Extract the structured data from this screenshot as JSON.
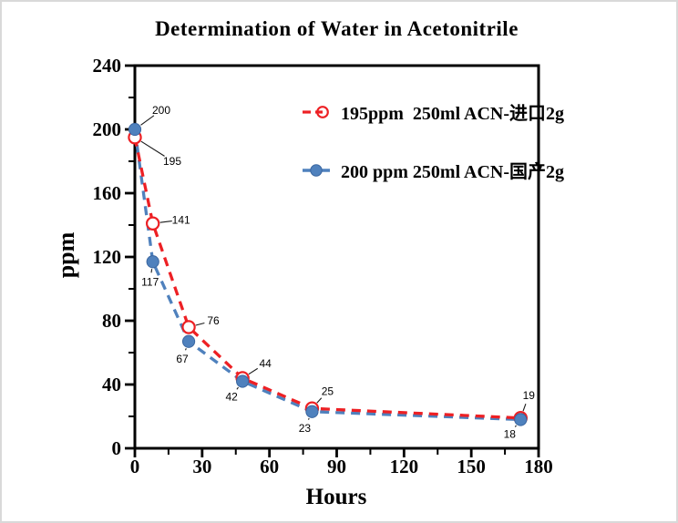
{
  "panel": {
    "background": "#ffffff",
    "frame_border_color": "#d9d9d9",
    "axis_color": "#000000"
  },
  "chart_data": {
    "type": "line",
    "title": "Determination of Water in Acetonitrile",
    "xlabel": "Hours",
    "ylabel": "ppm",
    "xlim": [
      0,
      180
    ],
    "ylim": [
      0,
      240
    ],
    "grid": false,
    "legend_position": "inside-top-right",
    "xticks": {
      "major": [
        0,
        30,
        60,
        90,
        120,
        150,
        180
      ],
      "minor": [
        15,
        45,
        75,
        105,
        135,
        165
      ]
    },
    "yticks": {
      "major": [
        0,
        40,
        80,
        120,
        160,
        200,
        240
      ],
      "minor": [
        20,
        60,
        100,
        140,
        180,
        220
      ]
    },
    "series": [
      {
        "name": "195ppm  250ml ACN-进口2g",
        "color": "#ed2024",
        "line_style": "dashed",
        "marker": "open-circle",
        "points": [
          {
            "x": 0,
            "y": 195,
            "label": "195",
            "label_dx": 41,
            "label_dy": 26
          },
          {
            "x": 8,
            "y": 141,
            "label": "141",
            "label_dx": 31,
            "label_dy": -4
          },
          {
            "x": 24,
            "y": 76,
            "label": "76",
            "label_dx": 27,
            "label_dy": -7
          },
          {
            "x": 48,
            "y": 44,
            "label": "44",
            "label_dx": 25,
            "label_dy": -16
          },
          {
            "x": 79,
            "y": 25,
            "label": "25",
            "label_dx": 17,
            "label_dy": -19
          },
          {
            "x": 172,
            "y": 19,
            "label": "19",
            "label_dx": 9,
            "label_dy": -25
          }
        ]
      },
      {
        "name": "200 ppm 250ml ACN-国产2g",
        "color": "#4f81bd",
        "line_style": "dashed",
        "marker": "filled-circle",
        "points": [
          {
            "x": 0,
            "y": 200,
            "label": "200",
            "label_dx": 29,
            "label_dy": -21
          },
          {
            "x": 8,
            "y": 117,
            "label": "117",
            "label_dx": -3,
            "label_dy": 22
          },
          {
            "x": 24,
            "y": 67,
            "label": "67",
            "label_dx": -7,
            "label_dy": 19
          },
          {
            "x": 48,
            "y": 42,
            "label": "42",
            "label_dx": -12,
            "label_dy": 17
          },
          {
            "x": 79,
            "y": 23,
            "label": "23",
            "label_dx": -8,
            "label_dy": 18
          },
          {
            "x": 172,
            "y": 18,
            "label": "18",
            "label_dx": -12,
            "label_dy": 16
          }
        ]
      }
    ]
  }
}
